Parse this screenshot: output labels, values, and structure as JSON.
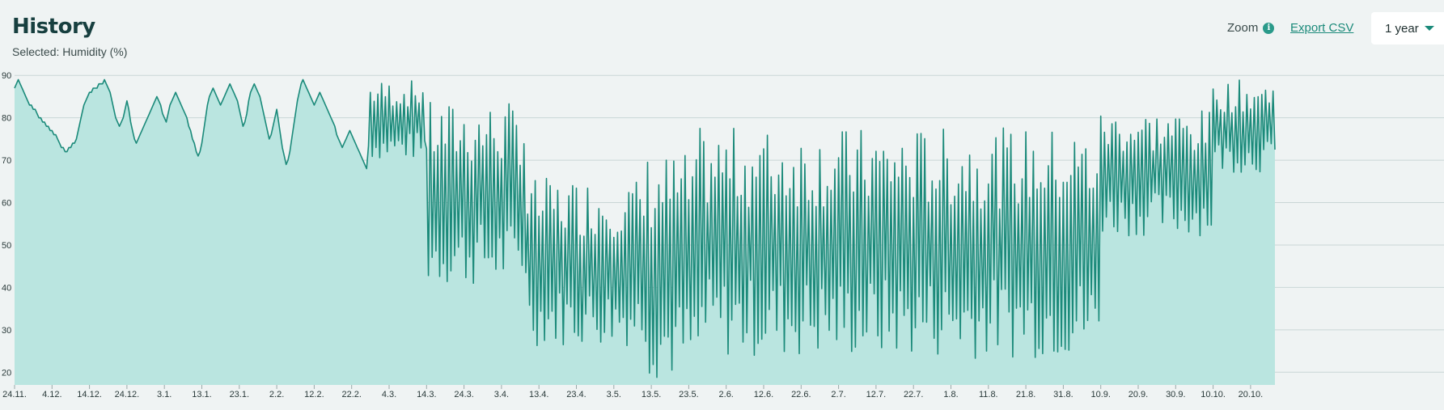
{
  "header": {
    "title": "History",
    "subtitle": "Selected: Humidity (%)",
    "zoom_label": "Zoom",
    "export_label": "Export CSV",
    "range_selected": "1 year"
  },
  "colors": {
    "line": "#1b8a7a",
    "fill": "#bae5e0",
    "grid": "#c9d6d6",
    "accent": "#2a9a8a"
  },
  "icons": {
    "zoom_info": "info-icon",
    "range_dropdown": "chevron-down-icon"
  },
  "chart_data": {
    "type": "area",
    "title": "",
    "xlabel": "",
    "ylabel": "",
    "ylim": [
      17,
      91
    ],
    "y_ticks": [
      20,
      30,
      40,
      50,
      60,
      70,
      80,
      90
    ],
    "x_ticks": [
      "24.11.",
      "4.12.",
      "14.12.",
      "24.12.",
      "3.1.",
      "13.1.",
      "23.1.",
      "2.2.",
      "12.2.",
      "22.2.",
      "4.3.",
      "14.3.",
      "24.3.",
      "3.4.",
      "13.4.",
      "23.4.",
      "3.5.",
      "13.5.",
      "23.5.",
      "2.6.",
      "12.6.",
      "22.6.",
      "2.7.",
      "12.7.",
      "22.7.",
      "1.8.",
      "11.8.",
      "21.8.",
      "31.8.",
      "10.9.",
      "20.9.",
      "30.9.",
      "10.10.",
      "20.10."
    ],
    "grid": true,
    "series": [
      {
        "points_per_day": 2,
        "daily_range_by_period": [
          {
            "from": "24.11.",
            "to": "14.3.",
            "low": 70,
            "high": 89
          },
          {
            "from": "14.3.",
            "to": "10.4.",
            "low": 40,
            "high": 84
          },
          {
            "from": "10.4.",
            "to": "12.5.",
            "low": 26,
            "high": 66
          },
          {
            "from": "12.5.",
            "to": "26.5.",
            "low": 18,
            "high": 72
          },
          {
            "from": "26.5.",
            "to": "10.9.",
            "low": 23,
            "high": 78
          },
          {
            "from": "10.9.",
            "to": "10.10.",
            "low": 52,
            "high": 82
          },
          {
            "from": "10.10.",
            "to": "27.10.",
            "low": 67,
            "high": 89
          }
        ],
        "values": [
          87,
          88,
          89,
          88,
          87,
          86,
          85,
          84,
          83,
          83,
          82,
          82,
          81,
          80,
          80,
          79,
          79,
          78,
          78,
          77,
          77,
          76,
          76,
          75,
          74,
          73,
          73,
          72,
          72,
          73,
          73,
          74,
          74,
          75,
          77,
          79,
          81,
          83,
          84,
          85,
          86,
          86,
          87,
          87,
          87,
          88,
          88,
          88,
          89,
          88,
          87,
          86,
          84,
          82,
          80,
          79,
          78,
          79,
          80,
          82,
          84,
          82,
          79,
          77,
          75,
          74,
          75,
          76,
          77,
          78,
          79,
          80,
          81,
          82,
          83,
          84,
          85,
          84,
          83,
          81,
          80,
          79,
          81,
          83,
          84,
          85,
          86,
          85,
          84,
          83,
          82,
          81,
          80,
          78,
          77,
          75,
          74,
          72,
          71,
          72,
          74,
          77,
          80,
          83,
          85,
          86,
          87,
          86,
          85,
          84,
          83,
          84,
          85,
          86,
          87,
          88,
          87,
          86,
          85,
          84,
          82,
          80,
          78,
          79,
          81,
          84,
          86,
          87,
          88,
          87,
          86,
          85,
          83,
          81,
          79,
          77,
          75,
          76,
          78,
          80,
          82,
          79,
          76,
          73,
          71,
          69,
          70,
          72,
          75,
          78,
          81,
          84,
          86,
          88,
          89,
          88,
          87,
          86,
          85,
          84,
          83,
          84,
          85,
          86,
          85,
          84,
          83,
          82,
          81,
          80,
          79,
          78,
          76,
          75,
          74,
          73,
          74,
          75,
          76,
          77,
          76,
          75,
          74,
          73,
          72,
          71,
          70,
          69,
          68
        ]
      }
    ]
  }
}
